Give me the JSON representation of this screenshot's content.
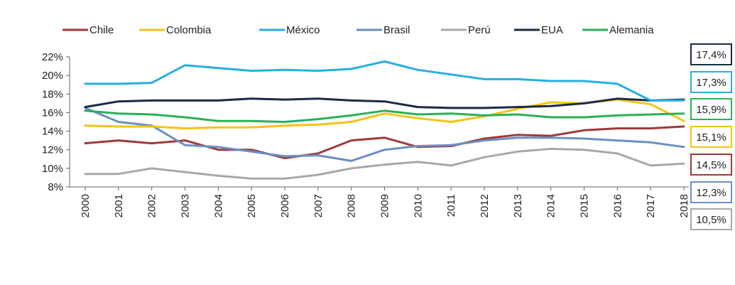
{
  "chart_data": {
    "type": "line",
    "title": "",
    "xlabel": "",
    "ylabel": "",
    "x": [
      "2000",
      "2001",
      "2002",
      "2003",
      "2004",
      "2005",
      "2006",
      "2007",
      "2008",
      "2009",
      "2010",
      "2011",
      "2012",
      "2013",
      "2014",
      "2015",
      "2016",
      "2017",
      "2018"
    ],
    "yticks": [
      "8%",
      "10%",
      "12%",
      "14%",
      "16%",
      "18%",
      "20%",
      "22%"
    ],
    "ylim": [
      8,
      22
    ],
    "grid": false,
    "legend_position": "top",
    "series": [
      {
        "name": "Chile",
        "color": "#a0393a",
        "values": [
          12.7,
          13.0,
          12.7,
          13.0,
          12.0,
          12.0,
          11.1,
          11.6,
          13.0,
          13.3,
          12.3,
          12.4,
          13.2,
          13.6,
          13.5,
          14.1,
          14.3,
          14.3,
          14.5
        ]
      },
      {
        "name": "Colombia",
        "color": "#f5c316",
        "values": [
          14.6,
          14.5,
          14.5,
          14.3,
          14.4,
          14.4,
          14.6,
          14.7,
          15.0,
          15.9,
          15.4,
          15.0,
          15.6,
          16.4,
          17.1,
          17.0,
          17.4,
          16.9,
          15.1
        ]
      },
      {
        "name": "México",
        "color": "#27aee3",
        "values": [
          19.1,
          19.1,
          19.2,
          21.1,
          20.8,
          20.5,
          20.6,
          20.5,
          20.7,
          21.5,
          20.6,
          20.1,
          19.6,
          19.6,
          19.4,
          19.4,
          19.1,
          17.3,
          17.3
        ]
      },
      {
        "name": "Brasil",
        "color": "#6b8fc4",
        "values": [
          16.5,
          15.0,
          14.6,
          12.5,
          12.3,
          11.8,
          11.3,
          11.4,
          10.8,
          12.0,
          12.4,
          12.5,
          13.0,
          13.3,
          13.3,
          13.2,
          13.0,
          12.8,
          12.3
        ]
      },
      {
        "name": "Perú",
        "color": "#a8a8a8",
        "values": [
          9.4,
          9.4,
          10.0,
          9.6,
          9.2,
          8.9,
          8.9,
          9.3,
          10.0,
          10.4,
          10.7,
          10.3,
          11.2,
          11.8,
          12.1,
          12.0,
          11.6,
          10.3,
          10.5
        ]
      },
      {
        "name": "EUA",
        "color": "#1d2a42",
        "values": [
          16.6,
          17.2,
          17.3,
          17.3,
          17.3,
          17.5,
          17.4,
          17.5,
          17.3,
          17.2,
          16.6,
          16.5,
          16.5,
          16.6,
          16.7,
          17.0,
          17.5,
          17.3,
          17.4
        ]
      },
      {
        "name": "Alemania",
        "color": "#29b157",
        "values": [
          16.2,
          15.9,
          15.8,
          15.5,
          15.1,
          15.1,
          15.0,
          15.3,
          15.7,
          16.2,
          15.8,
          15.9,
          15.7,
          15.8,
          15.5,
          15.5,
          15.7,
          15.8,
          15.9
        ]
      }
    ],
    "end_labels": [
      {
        "text": "17,4%",
        "color": "#1d2a42"
      },
      {
        "text": "17,3%",
        "color": "#27aee3"
      },
      {
        "text": "15,9%",
        "color": "#29b157"
      },
      {
        "text": "15,1%",
        "color": "#f5c316"
      },
      {
        "text": "14,5%",
        "color": "#a0393a"
      },
      {
        "text": "12,3%",
        "color": "#6b8fc4"
      },
      {
        "text": "10,5%",
        "color": "#a8a8a8"
      }
    ]
  }
}
